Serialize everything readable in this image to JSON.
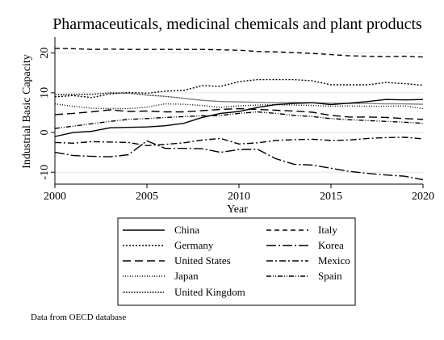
{
  "chart_data": {
    "type": "line",
    "title": "Pharmaceuticals, medicinal chemicals and plant products",
    "xlabel": "Year",
    "ylabel": "Industrial Basic Capacity",
    "xlim": [
      2000,
      2020
    ],
    "ylim": [
      -13,
      24
    ],
    "x_ticks": [
      "2000",
      "2005",
      "2010",
      "2015",
      "2020"
    ],
    "y_ticks": [
      "-10",
      "0",
      "10",
      "20"
    ],
    "grid": true,
    "legend_placement": "bottom",
    "note": "Data from OECD database",
    "x": [
      2000,
      2001,
      2002,
      2003,
      2004,
      2005,
      2006,
      2007,
      2008,
      2009,
      2010,
      2011,
      2012,
      2013,
      2014,
      2015,
      2016,
      2017,
      2018,
      2019,
      2020
    ],
    "series": [
      {
        "name": "China",
        "dash": "",
        "values": [
          -1,
          0,
          0.3,
          1.2,
          1.3,
          1.4,
          1.7,
          2.3,
          3.8,
          4.8,
          5.3,
          6.3,
          7.0,
          7.3,
          7.5,
          7.0,
          7.4,
          7.8,
          8.3,
          8.2,
          8.3
        ]
      },
      {
        "name": "Germany",
        "dash": "2 2",
        "values": [
          9,
          9.3,
          8.8,
          9.7,
          10.1,
          9.9,
          10.4,
          10.6,
          11.8,
          11.6,
          12.8,
          13.3,
          13.3,
          13.3,
          13.0,
          12.0,
          12.0,
          12.0,
          12.6,
          12.3,
          11.9
        ]
      },
      {
        "name": "United States",
        "dash": "10 5",
        "values": [
          4.5,
          4.8,
          5.2,
          5.7,
          5.3,
          5.4,
          5.2,
          5.2,
          5.5,
          5.8,
          6.0,
          5.8,
          5.6,
          5.4,
          5.1,
          4.3,
          3.9,
          3.9,
          3.8,
          3.5,
          3.3
        ]
      },
      {
        "name": "Japan",
        "dash": "1 2",
        "values": [
          7.2,
          6.6,
          6.1,
          6.0,
          6.0,
          6.4,
          7.2,
          7.1,
          6.8,
          6.3,
          6.7,
          6.9,
          7.0,
          6.9,
          6.8,
          6.6,
          6.7,
          6.6,
          6.6,
          6.7,
          6.0
        ]
      },
      {
        "name": "United Kingdom",
        "dash": "1 1",
        "values": [
          9.5,
          9.6,
          9.6,
          10.0,
          9.9,
          9.4,
          9.1,
          8.6,
          8.1,
          7.8,
          7.7,
          7.6,
          7.5,
          7.6,
          7.5,
          7.4,
          7.3,
          7.3,
          7.2,
          7.2,
          7.1
        ]
      },
      {
        "name": "Italy",
        "dash": "6 4",
        "values": [
          21.2,
          21.1,
          20.9,
          21.0,
          20.9,
          20.9,
          20.9,
          20.9,
          20.9,
          20.8,
          20.7,
          20.4,
          20.3,
          20.1,
          19.9,
          19.6,
          19.3,
          19.2,
          19.1,
          19.2,
          19.0
        ]
      },
      {
        "name": "Korea",
        "dash": "12 3 2 3",
        "values": [
          -5,
          -5.8,
          -6.0,
          -6.1,
          -5.6,
          -2.1,
          -4.0,
          -4.0,
          -4.1,
          -5.0,
          -4.3,
          -4.2,
          -6.6,
          -8.0,
          -8.2,
          -9.0,
          -9.8,
          -10.3,
          -10.7,
          -11.0,
          -11.9
        ]
      },
      {
        "name": "Mexico",
        "dash": "8 3 2 3",
        "values": [
          -2.5,
          -2.7,
          -2.3,
          -2.4,
          -2.5,
          -3.3,
          -3.0,
          -2.6,
          -1.9,
          -1.5,
          -2.9,
          -2.6,
          -2.0,
          -1.8,
          -1.7,
          -2.0,
          -1.9,
          -1.5,
          -1.3,
          -1.2,
          -1.6
        ]
      },
      {
        "name": "Spain",
        "dash": "6 2 1 2 1 2",
        "values": [
          1.0,
          1.6,
          2.2,
          2.8,
          3.3,
          3.5,
          3.8,
          4.0,
          4.2,
          4.3,
          4.8,
          5.2,
          4.8,
          4.3,
          4.0,
          3.5,
          3.2,
          3.0,
          2.8,
          2.6,
          2.3
        ]
      }
    ]
  }
}
